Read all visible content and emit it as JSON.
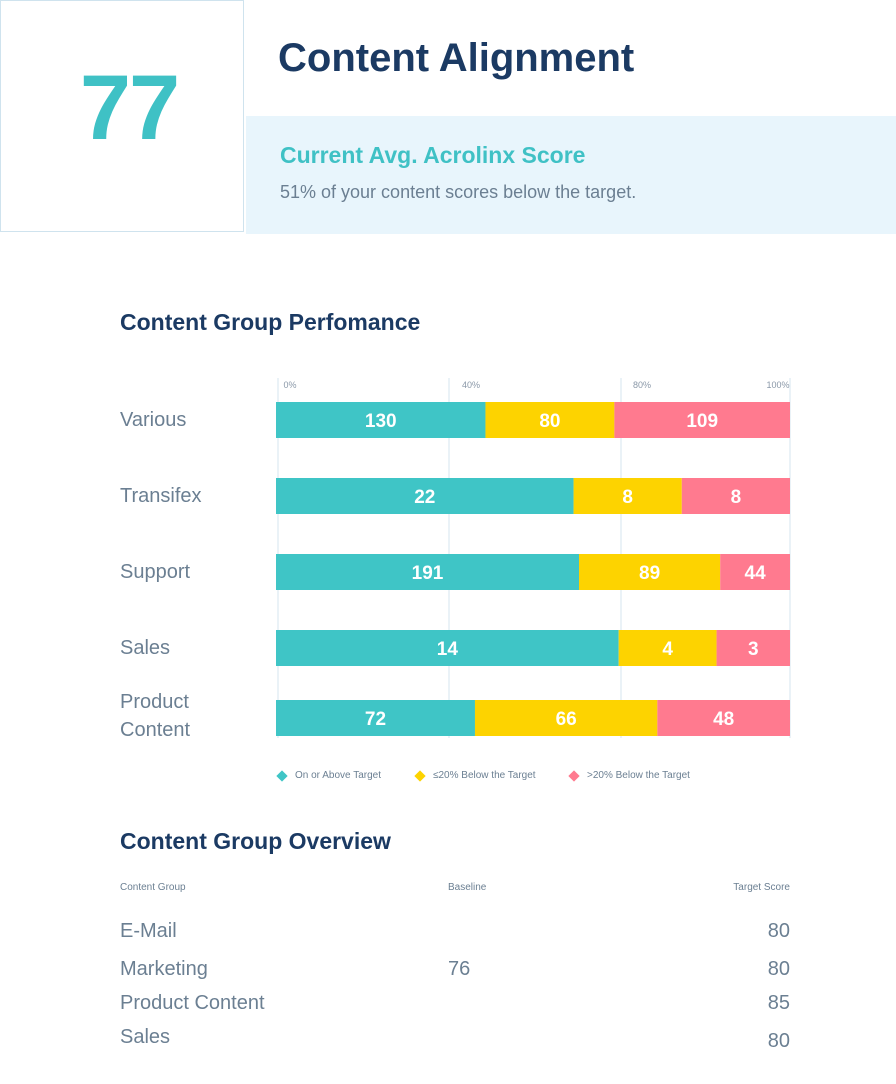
{
  "header": {
    "score": "77",
    "title": "Content Alignment",
    "score_label": "Current Avg. Acrolinx Score",
    "score_description": "51% of your content scores below the target."
  },
  "performance": {
    "title": "Content Group Perfomance"
  },
  "chart_data": {
    "type": "bar",
    "orientation": "horizontal",
    "stacked": true,
    "normalized_percent": true,
    "title": "Content Group Perfomance",
    "x_ticks": [
      "0%",
      "40%",
      "80%",
      "100%"
    ],
    "categories": [
      "Various",
      "Transifex",
      "Support",
      "Sales",
      "Product Content"
    ],
    "series": [
      {
        "name": "On or Above Target",
        "color": "#3fc5c6",
        "values": [
          130,
          22,
          191,
          14,
          72
        ]
      },
      {
        "name": "≤20% Below the Target",
        "color": "#fdd300",
        "values": [
          80,
          8,
          89,
          4,
          66
        ]
      },
      {
        "name": ">20% Below the Target",
        "color": "#ff7a8f",
        "values": [
          109,
          8,
          44,
          3,
          48
        ]
      }
    ],
    "grid": true,
    "legend": "bottom"
  },
  "legend": [
    {
      "label": "On or Above Target",
      "color": "#3fc5c6"
    },
    {
      "label": "≤20% Below the Target",
      "color": "#fdd300"
    },
    {
      "label": ">20% Below the Target",
      "color": "#ff7a8f"
    }
  ],
  "overview": {
    "title": "Content Group Overview",
    "columns": [
      "Content Group",
      "Baseline",
      "Target Score"
    ],
    "rows": [
      {
        "group": "E-Mail",
        "baseline": "",
        "target": "80"
      },
      {
        "group": "Marketing",
        "baseline": "76",
        "target": "80"
      },
      {
        "group": "Product Content",
        "baseline": "",
        "target": "85"
      },
      {
        "group": "Sales",
        "baseline": "",
        "target": "80"
      }
    ]
  }
}
